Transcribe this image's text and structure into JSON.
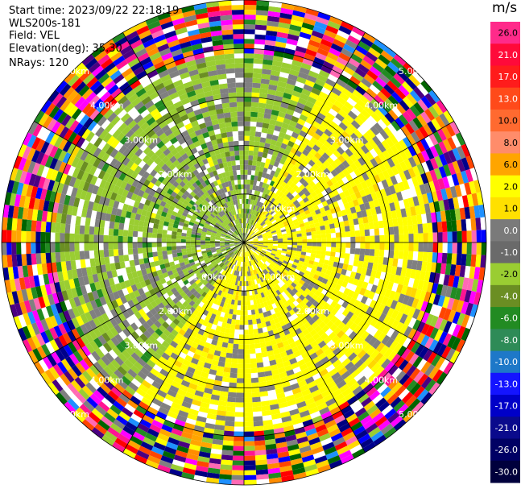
{
  "info": {
    "start_time": "Start time: 2023/09/22 22:18:19",
    "site": "WLS200s-181",
    "field": "Field: VEL",
    "elevation": "Elevation(deg): 35.30",
    "nrays": "NRays: 120"
  },
  "colorbar": {
    "unit": "m/s",
    "labels": [
      "26.0",
      "21.0",
      "17.0",
      "13.0",
      "10.0",
      "8.0",
      "6.0",
      "2.0",
      "1.0",
      "0.0",
      "-1.0",
      "-2.0",
      "-4.0",
      "-6.0",
      "-8.0",
      "-10.0",
      "-13.0",
      "-17.0",
      "-21.0",
      "-26.0",
      "-30.0"
    ],
    "colors": [
      "#ff2a8a",
      "#ff0a3a",
      "#ff1c1c",
      "#ff4a1a",
      "#ff6a30",
      "#ff8c6a",
      "#ffa500",
      "#ffff00",
      "#ffe000",
      "#7a7a7a",
      "#6a6a6a",
      "#9acd32",
      "#6b8e23",
      "#228b22",
      "#2e8b57",
      "#1e78c8",
      "#1414ff",
      "#0000c8",
      "#0a0a8c",
      "#000064",
      "#00003c"
    ]
  },
  "chart_data": {
    "type": "heatmap",
    "projection": "polar PPI",
    "field": "VEL",
    "units": "m/s",
    "n_rays": 120,
    "range_rings_km": [
      1.0,
      2.0,
      3.0,
      4.0,
      5.0
    ],
    "ring_labels": [
      "1.00km",
      "2.00km",
      "3.00km",
      "4.00km",
      "5.00km"
    ],
    "max_range_km": 5.0,
    "spoke_angles_deg": [
      0,
      30,
      60,
      90,
      120,
      150,
      180,
      210,
      240,
      270,
      300,
      330
    ],
    "regions": [
      {
        "sector": "west/northwest",
        "range_km": [
          0.3,
          3.8
        ],
        "velocity_ms": [
          -4.0,
          -1.0
        ]
      },
      {
        "sector": "east/southeast",
        "range_km": [
          0.3,
          3.8
        ],
        "velocity_ms": [
          1.0,
          2.0
        ]
      },
      {
        "sector": "all",
        "range_km": [
          3.8,
          5.0
        ],
        "velocity_ms": [
          -30.0,
          26.0
        ],
        "note": "noise"
      }
    ]
  }
}
